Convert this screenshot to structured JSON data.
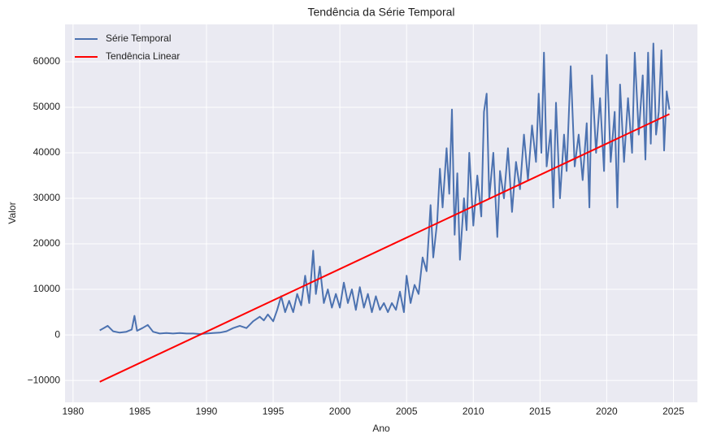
{
  "chart_data": {
    "type": "line",
    "title": "Tendência da Série Temporal",
    "x_label": "Ano",
    "y_label": "Valor",
    "xlim": [
      1979.4,
      2026.8
    ],
    "ylim": [
      -14800,
      68200
    ],
    "xticks": [
      1980,
      1985,
      1990,
      1995,
      2000,
      2005,
      2010,
      2015,
      2020,
      2025
    ],
    "yticks": [
      {
        "value": -10000,
        "label": "−10000"
      },
      0,
      10000,
      20000,
      30000,
      40000,
      50000,
      60000
    ],
    "grid": true,
    "legend": "upper left",
    "series": [
      {
        "name": "Série Temporal",
        "color": "#4c72b0",
        "x": [
          1982.0,
          1982.3,
          1982.6,
          1983.0,
          1983.5,
          1984.0,
          1984.4,
          1984.6,
          1984.8,
          1985.2,
          1985.6,
          1986.0,
          1986.5,
          1987.0,
          1987.5,
          1988.0,
          1988.5,
          1989.0,
          1989.5,
          1990.0,
          1990.5,
          1991.0,
          1991.5,
          1992.0,
          1992.5,
          1993.0,
          1993.5,
          1994.0,
          1994.3,
          1994.6,
          1995.0,
          1995.3,
          1995.6,
          1995.9,
          1996.2,
          1996.5,
          1996.8,
          1997.1,
          1997.4,
          1997.7,
          1998.0,
          1998.2,
          1998.5,
          1998.8,
          1999.1,
          1999.4,
          1999.7,
          2000.0,
          2000.3,
          2000.6,
          2000.9,
          2001.2,
          2001.5,
          2001.8,
          2002.1,
          2002.4,
          2002.7,
          2003.0,
          2003.3,
          2003.6,
          2003.9,
          2004.2,
          2004.5,
          2004.8,
          2005.0,
          2005.3,
          2005.6,
          2005.9,
          2006.2,
          2006.5,
          2006.8,
          2007.0,
          2007.3,
          2007.5,
          2007.7,
          2008.0,
          2008.2,
          2008.4,
          2008.6,
          2008.8,
          2009.0,
          2009.3,
          2009.5,
          2009.7,
          2010.0,
          2010.3,
          2010.6,
          2010.8,
          2011.0,
          2011.2,
          2011.5,
          2011.8,
          2012.0,
          2012.3,
          2012.6,
          2012.9,
          2013.2,
          2013.5,
          2013.8,
          2014.1,
          2014.4,
          2014.7,
          2014.9,
          2015.1,
          2015.3,
          2015.5,
          2015.8,
          2016.0,
          2016.2,
          2016.5,
          2016.8,
          2017.0,
          2017.3,
          2017.6,
          2017.9,
          2018.2,
          2018.5,
          2018.7,
          2018.9,
          2019.2,
          2019.5,
          2019.8,
          2020.0,
          2020.3,
          2020.6,
          2020.8,
          2021.0,
          2021.3,
          2021.6,
          2021.9,
          2022.1,
          2022.4,
          2022.7,
          2022.9,
          2023.1,
          2023.3,
          2023.5,
          2023.7,
          2023.9,
          2024.1,
          2024.3,
          2024.5,
          2024.7
        ],
        "values": [
          1000,
          1500,
          2000,
          800,
          500,
          700,
          1200,
          4200,
          900,
          1500,
          2200,
          700,
          300,
          400,
          300,
          400,
          300,
          300,
          200,
          300,
          400,
          500,
          800,
          1500,
          2000,
          1500,
          3000,
          4000,
          3200,
          4500,
          3000,
          5500,
          8500,
          5000,
          7500,
          5000,
          9000,
          6500,
          13000,
          7000,
          18500,
          9000,
          15000,
          7000,
          10000,
          6000,
          9000,
          6000,
          11500,
          7000,
          10000,
          5500,
          10500,
          6000,
          9000,
          5000,
          8500,
          5500,
          7000,
          5000,
          7000,
          5500,
          9500,
          5000,
          13000,
          7000,
          11000,
          9000,
          17000,
          14000,
          28500,
          17000,
          25000,
          36500,
          28000,
          41000,
          31000,
          49500,
          22000,
          35500,
          16500,
          30000,
          23000,
          40000,
          24000,
          35000,
          26000,
          49000,
          53000,
          30000,
          40000,
          21500,
          36000,
          30000,
          41000,
          27000,
          38000,
          32000,
          44000,
          34000,
          46000,
          38000,
          53000,
          40000,
          62000,
          37000,
          45000,
          28000,
          51000,
          30000,
          44000,
          36000,
          59000,
          37000,
          44000,
          34000,
          46500,
          28000,
          57000,
          40000,
          52000,
          36000,
          61500,
          38000,
          49000,
          28000,
          55000,
          38000,
          52000,
          40000,
          62000,
          44000,
          57000,
          38500,
          62000,
          42000,
          64000,
          44000,
          49000,
          62500,
          40500,
          53500,
          49500
        ]
      },
      {
        "name": "Tendência Linear",
        "color": "#ff0000",
        "x": [
          1982.0,
          2024.7
        ],
        "values": [
          -10300,
          48500
        ]
      }
    ]
  }
}
